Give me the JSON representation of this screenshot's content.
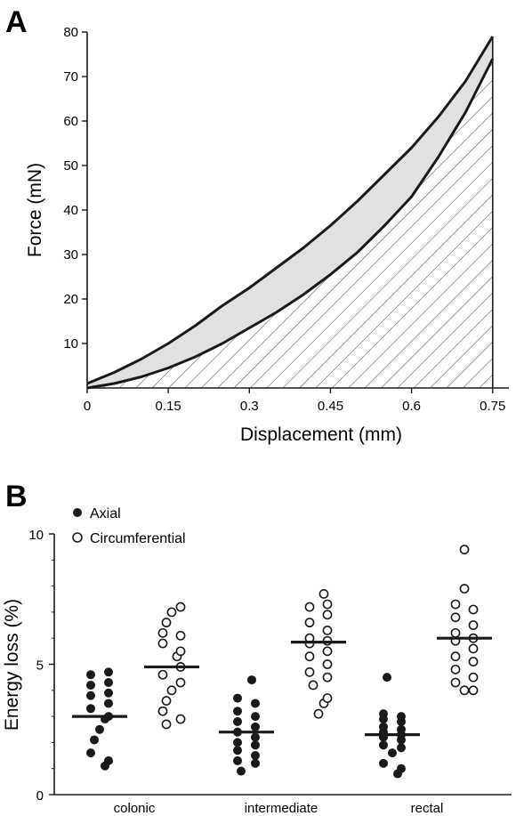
{
  "panels": {
    "a": {
      "label": "A"
    },
    "b": {
      "label": "B"
    }
  },
  "colors": {
    "ink": "#1a1a1a",
    "loop_fill": "#e0e1e3",
    "hatch": "#333333"
  },
  "chart_data": [
    {
      "type": "line",
      "panel": "A",
      "title": "",
      "xlabel": "Displacement (mm)",
      "ylabel": "Force (mN)",
      "xlim": [
        0,
        0.78
      ],
      "ylim": [
        0,
        80
      ],
      "x_ticks": [
        "0",
        "0.15",
        "0.3",
        "0.45",
        "0.6",
        "0.75"
      ],
      "x_tick_values": [
        0,
        0.15,
        0.3,
        0.45,
        0.6,
        0.75
      ],
      "y_ticks": [
        "10",
        "20",
        "30",
        "40",
        "50",
        "60",
        "70",
        "80"
      ],
      "y_tick_values": [
        10,
        20,
        30,
        40,
        50,
        60,
        70,
        80
      ],
      "series": [
        {
          "role": "loading",
          "x": [
            0,
            0.05,
            0.1,
            0.15,
            0.2,
            0.25,
            0.3,
            0.35,
            0.4,
            0.45,
            0.5,
            0.55,
            0.6,
            0.65,
            0.7,
            0.75
          ],
          "y": [
            1,
            3.5,
            6.5,
            10,
            14,
            18.5,
            22.5,
            27,
            31.5,
            36.5,
            42,
            48,
            54,
            61,
            69,
            79
          ]
        },
        {
          "role": "unloading",
          "x": [
            0,
            0.05,
            0.1,
            0.15,
            0.2,
            0.25,
            0.3,
            0.35,
            0.4,
            0.45,
            0.5,
            0.55,
            0.6,
            0.65,
            0.7,
            0.75
          ],
          "y": [
            0,
            1,
            2.5,
            4.5,
            7,
            10,
            13.5,
            17,
            21,
            25.5,
            30.5,
            36.5,
            43,
            52,
            62,
            74
          ]
        }
      ],
      "fill_between": "loading-unloading",
      "hatched_under": "unloading",
      "grid": false
    },
    {
      "type": "scatter",
      "panel": "B",
      "title": "",
      "xlabel": "",
      "ylabel": "Energy loss (%)",
      "ylim": [
        0,
        10
      ],
      "y_ticks": [
        "0",
        "5",
        "10"
      ],
      "y_tick_values": [
        0,
        5,
        10
      ],
      "categories": [
        "colonic",
        "intermediate",
        "rectal"
      ],
      "legend": {
        "position": "top-left",
        "entries": [
          "Axial",
          "Circumferential"
        ]
      },
      "grid": false,
      "series": [
        {
          "name": "Axial",
          "marker": "filled-circle",
          "means": [
            3.0,
            2.4,
            2.3
          ],
          "points": [
            [
              4.7,
              4.6,
              4.3,
              4.2,
              3.9,
              3.8,
              3.5,
              3.3,
              3.0,
              2.9,
              2.5,
              2.1,
              1.6,
              1.3,
              1.1
            ],
            [
              4.4,
              3.7,
              3.5,
              3.2,
              3.0,
              2.8,
              2.6,
              2.4,
              2.2,
              2.0,
              1.9,
              1.7,
              1.5,
              1.3,
              1.2,
              0.9
            ],
            [
              4.5,
              3.1,
              3.0,
              2.9,
              2.8,
              2.6,
              2.5,
              2.4,
              2.3,
              2.2,
              2.1,
              1.9,
              1.8,
              1.6,
              1.2,
              1.0,
              0.8
            ]
          ]
        },
        {
          "name": "Circumferential",
          "marker": "open-circle",
          "means": [
            4.9,
            5.85,
            6.0
          ],
          "points": [
            [
              7.2,
              7.0,
              6.6,
              6.2,
              6.1,
              5.8,
              5.5,
              5.3,
              4.9,
              4.6,
              4.3,
              4.0,
              3.6,
              3.2,
              2.9,
              2.7
            ],
            [
              7.7,
              7.3,
              7.2,
              6.9,
              6.6,
              6.3,
              6.0,
              5.9,
              5.8,
              5.5,
              5.3,
              5.0,
              4.7,
              4.5,
              4.2,
              3.7,
              3.5,
              3.1
            ],
            [
              9.4,
              7.9,
              7.3,
              7.1,
              6.8,
              6.5,
              6.2,
              6.0,
              5.9,
              5.6,
              5.3,
              5.1,
              4.8,
              4.5,
              4.3,
              4.0,
              4.0
            ]
          ]
        }
      ]
    }
  ]
}
